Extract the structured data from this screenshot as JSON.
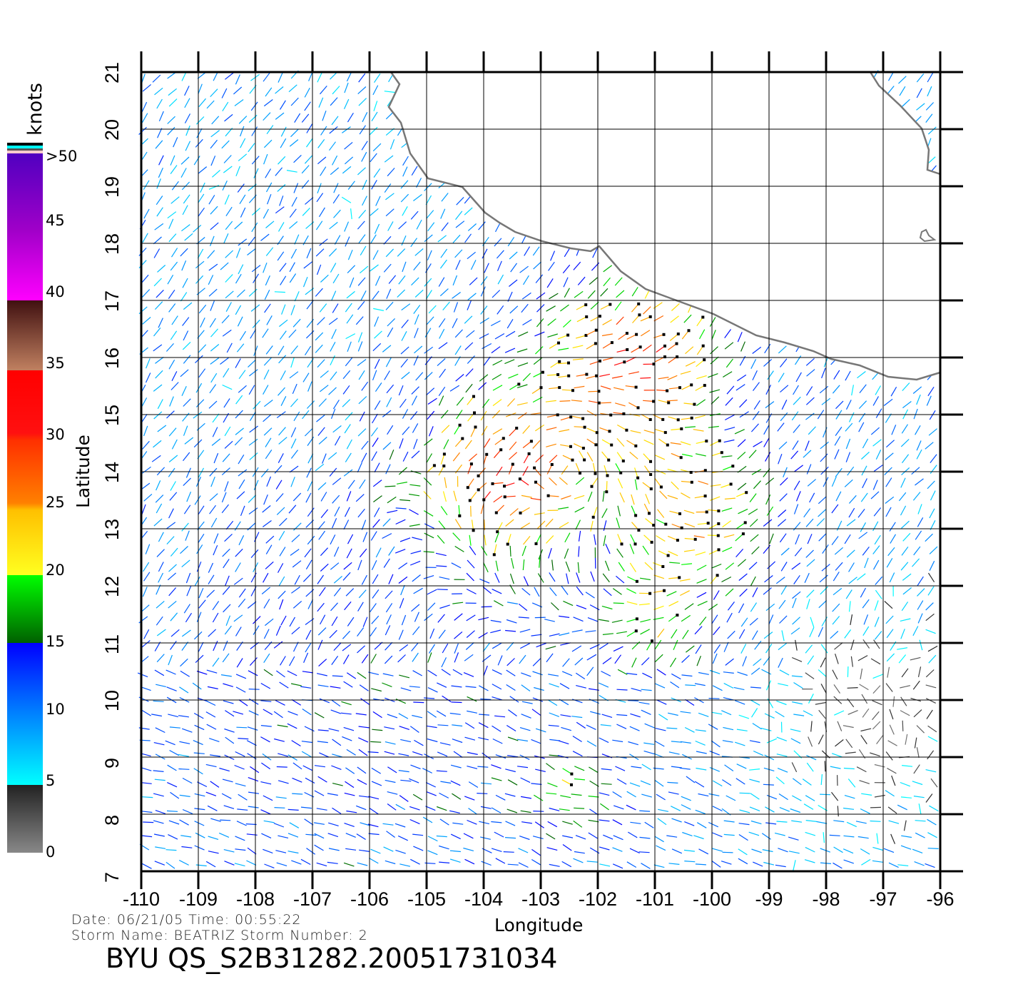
{
  "map": {
    "x_axis": {
      "label": "Longitude",
      "ticks": [
        "-110",
        "-109",
        "-108",
        "-107",
        "-106",
        "-105",
        "-104",
        "-103",
        "-102",
        "-101",
        "-100",
        "-99",
        "-98",
        "-97",
        "-96"
      ],
      "range": [
        -110,
        -96
      ]
    },
    "y_axis": {
      "label": "Latitude",
      "ticks": [
        "7",
        "8",
        "9",
        "10",
        "11",
        "12",
        "13",
        "14",
        "15",
        "16",
        "17",
        "18",
        "19",
        "20",
        "21"
      ],
      "range": [
        7,
        21
      ]
    },
    "grid": true,
    "content": "wind vectors colored by speed over ocean off southwest Mexico coast",
    "land_color": "#ffffff",
    "coast_color": "#777777"
  },
  "colorbar": {
    "unit": "knots",
    "labels": [
      "0",
      "5",
      "10",
      "15",
      "20",
      "25",
      "30",
      "35",
      "40",
      "45",
      ">50"
    ],
    "colors": {
      "0-5": "#888888→#222222",
      "5-10": "#00ffff→#0080ff",
      "10-15": "#0060ff→#0000ff",
      "15-20": "#006000→#00ff00",
      "20-25": "#ffff20→#ffc000",
      "25-30": "#ff9000→#ff3000",
      "30-35": "#ff2000→#ff0000",
      "35-40": "#c08060→#401010",
      "40-45": "#ff00ff→#b000c8",
      "45-50": "#9000c0→#5000c0"
    }
  },
  "info": {
    "line1": "Date: 06/21/05   Time: 00:55:22",
    "line2": "Storm  Name: BEATRIZ   Storm  Number: 2",
    "title": "BYU  QS_S2B31282.20051731034"
  }
}
